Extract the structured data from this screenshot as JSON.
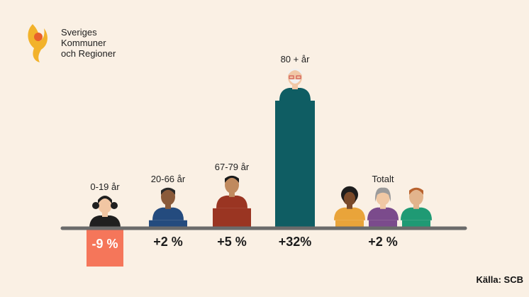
{
  "logo": {
    "lines": [
      "Sveriges",
      "Kommuner",
      "och Regioner"
    ],
    "colors": {
      "flame_outer": "#f2b22b",
      "flame_inner": "#e8612c"
    }
  },
  "source": "Källa: SCB",
  "chart_data": {
    "type": "bar",
    "title": "",
    "xlabel": "",
    "ylabel": "",
    "ylim": [
      -10,
      32
    ],
    "grid": false,
    "legend": "none",
    "categories": [
      "0-19 år",
      "20-66 år",
      "67-79 år",
      "80 + år",
      "Totalt"
    ],
    "values": [
      -9,
      2,
      5,
      32,
      2
    ],
    "value_labels": [
      "-9 %",
      "+2 %",
      "+5 %",
      "+32%",
      "+2 %"
    ],
    "colors": [
      "#f5765a",
      "#244b7e",
      "#9a3522",
      "#0f5d63",
      "#7b4b8c"
    ],
    "baseline_color": "#6b6b6b"
  }
}
